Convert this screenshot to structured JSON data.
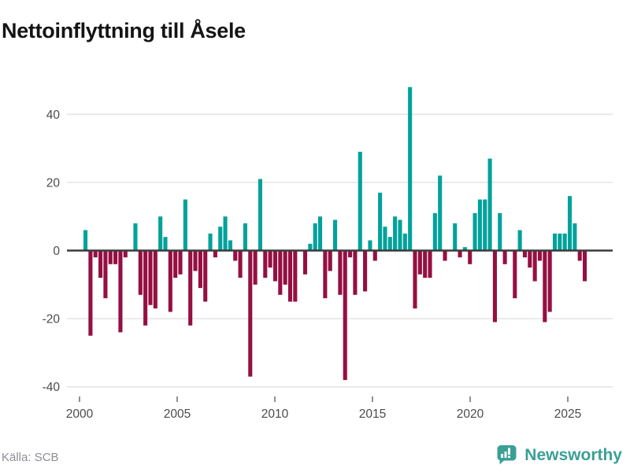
{
  "header": {
    "title": "Nettoinflyttning till Åsele"
  },
  "chart_data": {
    "type": "bar",
    "title": "Nettoinflyttning till Åsele",
    "frequency": "quarterly",
    "x_start_quarter": "2000 Q2",
    "x_end_quarter": "2025 Q2",
    "values": [
      6,
      -25,
      -2,
      -8,
      -14,
      -4,
      -4,
      -24,
      -2,
      0,
      8,
      -13,
      -22,
      -16,
      -17,
      10,
      4,
      -18,
      -8,
      -7,
      15,
      -22,
      -6,
      -11,
      -15,
      5,
      -2,
      7,
      10,
      3,
      -3,
      -8,
      8,
      -37,
      -10,
      21,
      -8,
      -5,
      -9,
      -13,
      -10,
      -15,
      -15,
      0,
      -7,
      2,
      8,
      10,
      -14,
      -6,
      9,
      -13,
      -38,
      -2,
      -13,
      29,
      -12,
      3,
      -3,
      17,
      7,
      4,
      10,
      9,
      5,
      48,
      -17,
      -7,
      -8,
      -8,
      11,
      22,
      -3,
      0,
      8,
      -2,
      1,
      -4,
      11,
      15,
      15,
      27,
      -21,
      11,
      -4,
      0,
      -14,
      6,
      -2,
      -5,
      -9,
      -3,
      -21,
      -18,
      5,
      5,
      5,
      16,
      8,
      -3,
      -9
    ],
    "y_ticks": [
      40,
      20,
      0,
      -20,
      -40
    ],
    "y_tick_labels": [
      "40",
      "20",
      "0",
      "-20",
      "-40"
    ],
    "x_ticks": [
      2000,
      2005,
      2010,
      2015,
      2020,
      2025
    ],
    "x_tick_labels": [
      "2000",
      "2005",
      "2010",
      "2015",
      "2020",
      "2025"
    ],
    "ylim": [
      -42,
      50
    ],
    "grid": "horizontal",
    "legend": "none",
    "positive_color": "#00a29b",
    "negative_color": "#950f42",
    "axis_line_color": "#3b3b3b",
    "grid_color": "#e4e4e4",
    "tick_label_color": "#4b4b4b"
  },
  "footer": {
    "source_label": "Källa: SCB",
    "logo_text": "Newsworthy",
    "logo_color": "#3aa096"
  }
}
